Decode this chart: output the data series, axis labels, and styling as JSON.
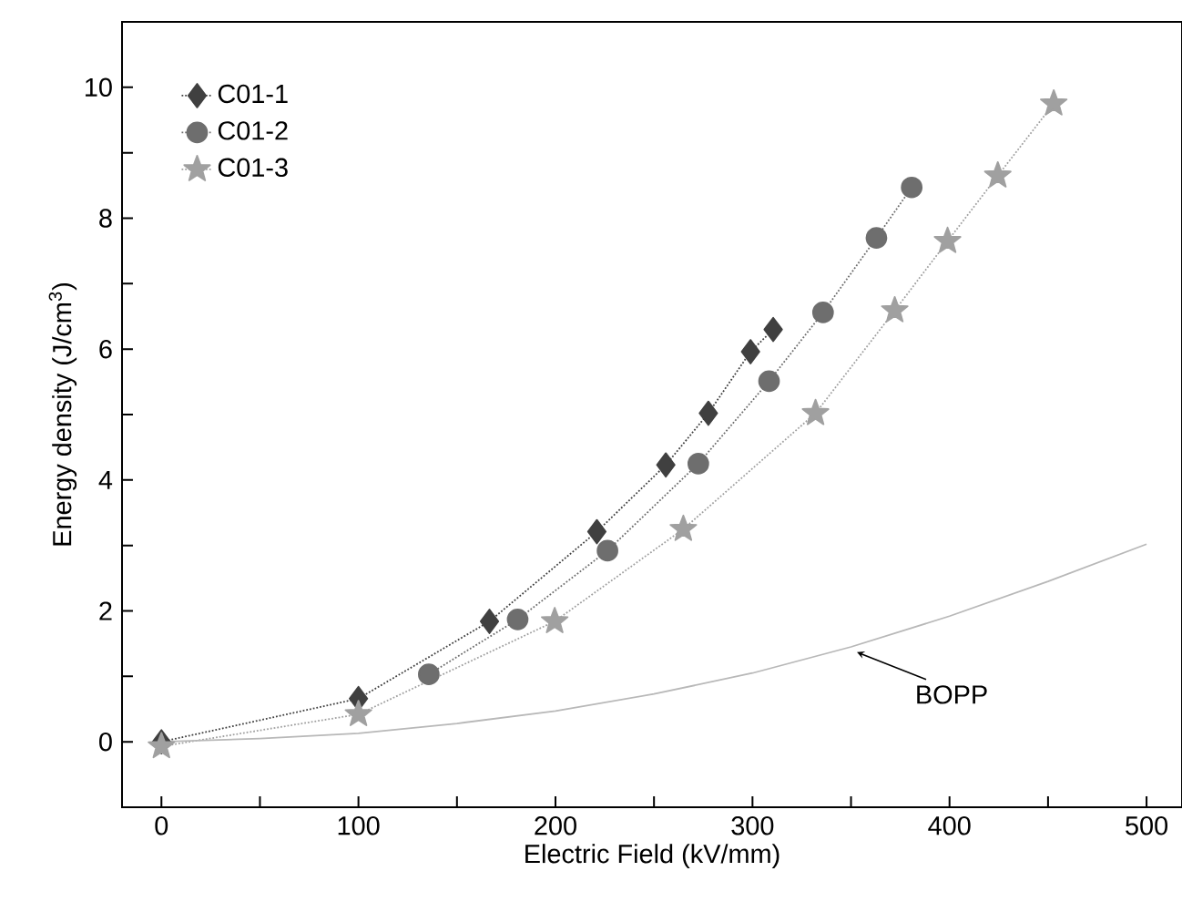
{
  "chart_data": {
    "type": "line",
    "xlabel": "Electric Field (kV/mm)",
    "ylabel": "Energy density (J/cm$^{3}$)",
    "xlim": [
      -20,
      518
    ],
    "ylim": [
      -1,
      11
    ],
    "xticks": [
      0,
      {
        "value": 50,
        "label": null
      },
      100,
      {
        "value": 150,
        "label": null
      },
      200,
      {
        "value": 250,
        "label": null
      },
      300,
      {
        "value": 350,
        "label": null
      },
      400,
      {
        "value": 450,
        "label": null
      },
      500
    ],
    "yticks": [
      {
        "value": -1,
        "label": null
      },
      0,
      {
        "value": 1,
        "label": null
      },
      2,
      {
        "value": 3,
        "label": null
      },
      4,
      {
        "value": 5,
        "label": null
      },
      6,
      {
        "value": 7,
        "label": null
      },
      8,
      {
        "value": 9,
        "label": null
      },
      10
    ],
    "legend": "top left",
    "grid": false,
    "series": [
      {
        "name": "C01-1",
        "color": "#404040",
        "marker": "diamond",
        "line_style": "dotted",
        "x": [
          0,
          100,
          166.5,
          221,
          256,
          277.6,
          299,
          310.5
        ],
        "values": [
          0,
          0.66,
          1.84,
          3.21,
          4.23,
          5.02,
          5.96,
          6.3
        ]
      },
      {
        "name": "C01-2",
        "color": "#6e6e6e",
        "marker": "circle",
        "line_style": "dotted",
        "x": [
          135.7,
          180.8,
          226.4,
          272.5,
          308.4,
          335.8,
          362.9,
          380.8
        ],
        "values": [
          1.03,
          1.87,
          2.92,
          4.25,
          5.51,
          6.56,
          7.7,
          8.47
        ]
      },
      {
        "name": "C01-3",
        "color": "#a0a0a0",
        "marker": "star",
        "line_style": "dotted",
        "x": [
          0,
          100,
          199.6,
          264.9,
          332,
          372.2,
          399,
          424.5,
          452.9
        ],
        "values": [
          -0.07,
          0.42,
          1.84,
          3.25,
          5.02,
          6.59,
          7.65,
          8.65,
          9.75
        ]
      },
      {
        "type": "line",
        "color": "#b8b8b8",
        "marker": "none",
        "line_style": "solid",
        "x": [
          0,
          50,
          100,
          150,
          200,
          250,
          300,
          350,
          400,
          450,
          500
        ],
        "values": [
          0,
          0.05,
          0.13,
          0.28,
          0.47,
          0.73,
          1.05,
          1.45,
          1.92,
          2.45,
          3.02
        ]
      }
    ],
    "annotations": [
      {
        "text": "BOPP",
        "x": 353,
        "y": 1.37
      }
    ]
  }
}
